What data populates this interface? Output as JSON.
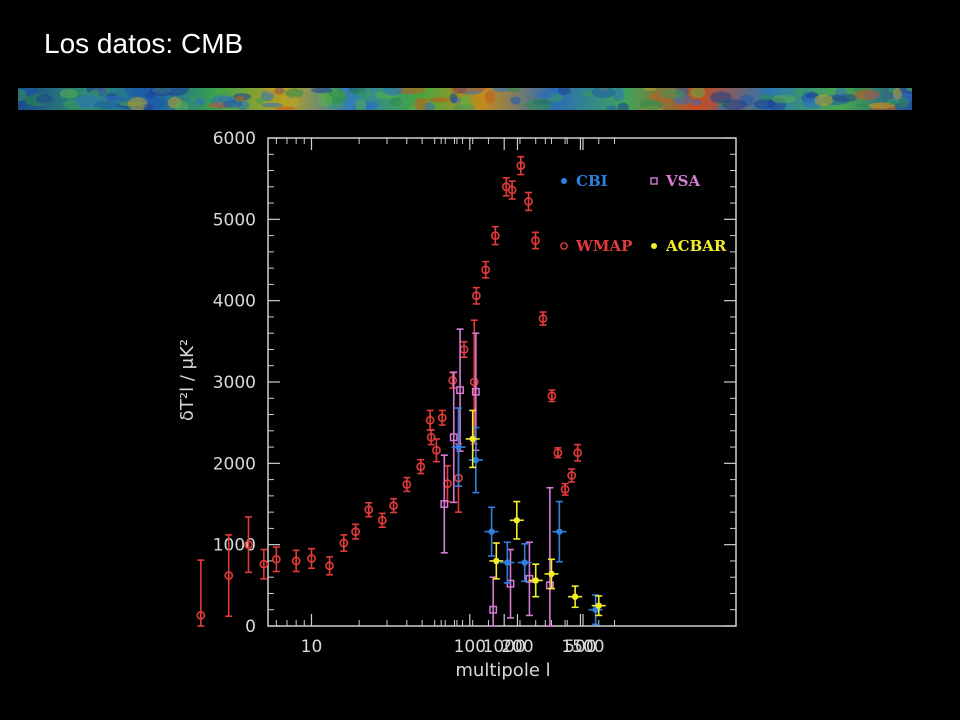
{
  "slide": {
    "title": "Los datos: CMB"
  },
  "strip": {
    "label": "CMB temperature map strip"
  },
  "chart_data": {
    "type": "scatter",
    "title": "",
    "xlabel": "multipole l",
    "ylabel": "δT²l / μK²",
    "x_scale": "mixed log (l < ~500) / linear (l > ~500)",
    "ylim": [
      0,
      6000
    ],
    "x_tick_labels": [
      "10",
      "100",
      "200",
      "500",
      "1000",
      "1500"
    ],
    "x_tick_values": [
      10,
      100,
      200,
      500,
      1000,
      1500
    ],
    "y_tick_labels": [
      "0",
      "1000",
      "2000",
      "3000",
      "4000",
      "5000",
      "6000"
    ],
    "y_tick_values": [
      0,
      1000,
      2000,
      3000,
      4000,
      5000,
      6000
    ],
    "grid": false,
    "legend_position": "top-right",
    "legend": [
      {
        "name": "CBI",
        "color": "#2f7fe0",
        "marker": "dot"
      },
      {
        "name": "VSA",
        "color": "#d77ad6",
        "marker": "open-square"
      },
      {
        "name": "WMAP",
        "color": "#e23b3b",
        "marker": "open-circle"
      },
      {
        "name": "ACBAR",
        "color": "#f2ee2a",
        "marker": "dot"
      }
    ],
    "series": [
      {
        "name": "WMAP",
        "color": "#e23b3b",
        "marker": "open-circle",
        "points": [
          {
            "x": 2,
            "y": 130,
            "err": 680
          },
          {
            "x": 3,
            "y": 620,
            "err": 500
          },
          {
            "x": 4,
            "y": 1000,
            "err": 340
          },
          {
            "x": 5,
            "y": 760,
            "err": 180
          },
          {
            "x": 6,
            "y": 820,
            "err": 150
          },
          {
            "x": 8,
            "y": 800,
            "err": 130
          },
          {
            "x": 10,
            "y": 830,
            "err": 120
          },
          {
            "x": 13,
            "y": 740,
            "err": 110
          },
          {
            "x": 16,
            "y": 1020,
            "err": 100
          },
          {
            "x": 19,
            "y": 1160,
            "err": 90
          },
          {
            "x": 23,
            "y": 1430,
            "err": 85
          },
          {
            "x": 28,
            "y": 1300,
            "err": 85
          },
          {
            "x": 33,
            "y": 1480,
            "err": 85
          },
          {
            "x": 40,
            "y": 1740,
            "err": 85
          },
          {
            "x": 49,
            "y": 1960,
            "err": 85
          },
          {
            "x": 57,
            "y": 2320,
            "err": 90
          },
          {
            "x": 67,
            "y": 2560,
            "err": 90
          },
          {
            "x": 78,
            "y": 3020,
            "err": 95
          },
          {
            "x": 92,
            "y": 3400,
            "err": 95
          },
          {
            "x": 110,
            "y": 4060,
            "err": 100
          },
          {
            "x": 126,
            "y": 4380,
            "err": 100
          },
          {
            "x": 145,
            "y": 4800,
            "err": 110
          },
          {
            "x": 170,
            "y": 5400,
            "err": 110
          },
          {
            "x": 185,
            "y": 5360,
            "err": 110
          },
          {
            "x": 210,
            "y": 5660,
            "err": 110
          },
          {
            "x": 235,
            "y": 5220,
            "err": 110
          },
          {
            "x": 260,
            "y": 4740,
            "err": 100
          },
          {
            "x": 290,
            "y": 3780,
            "err": 80
          },
          {
            "x": 330,
            "y": 2830,
            "err": 70
          },
          {
            "x": 360,
            "y": 2130,
            "err": 60
          },
          {
            "x": 400,
            "y": 1680,
            "err": 70
          },
          {
            "x": 440,
            "y": 1850,
            "err": 80
          },
          {
            "x": 480,
            "y": 2130,
            "err": 100
          },
          {
            "x": 530,
            "y": 2530,
            "err": 120
          },
          {
            "x": 570,
            "y": 2160,
            "err": 140
          },
          {
            "x": 640,
            "y": 1750,
            "err": 220
          },
          {
            "x": 710,
            "y": 1820,
            "err": 420
          },
          {
            "x": 810,
            "y": 3000,
            "err": 760
          }
        ]
      },
      {
        "name": "VSA",
        "color": "#d77ad6",
        "marker": "open-square",
        "points": [
          {
            "x": 620,
            "y": 1500,
            "err": 600
          },
          {
            "x": 680,
            "y": 2320,
            "err": 800
          },
          {
            "x": 720,
            "y": 2900,
            "err": 750
          },
          {
            "x": 820,
            "y": 2880,
            "err": 720
          },
          {
            "x": 930,
            "y": 200,
            "err": 400
          },
          {
            "x": 1040,
            "y": 520,
            "err": 420
          },
          {
            "x": 1160,
            "y": 580,
            "err": 450
          },
          {
            "x": 1290,
            "y": 500,
            "err": 1200
          }
        ]
      },
      {
        "name": "CBI",
        "color": "#2f7fe0",
        "marker": "dot",
        "points": [
          {
            "x": 710,
            "y": 2200,
            "err": 480
          },
          {
            "x": 820,
            "y": 2040,
            "err": 400
          },
          {
            "x": 920,
            "y": 1160,
            "err": 300
          },
          {
            "x": 1020,
            "y": 780,
            "err": 250
          },
          {
            "x": 1130,
            "y": 780,
            "err": 230
          },
          {
            "x": 1350,
            "y": 1160,
            "err": 370
          },
          {
            "x": 1580,
            "y": 200,
            "err": 180
          }
        ]
      },
      {
        "name": "ACBAR",
        "color": "#f2ee2a",
        "marker": "dot",
        "points": [
          {
            "x": 800,
            "y": 2300,
            "err": 350
          },
          {
            "x": 950,
            "y": 800,
            "err": 220
          },
          {
            "x": 1080,
            "y": 1300,
            "err": 230
          },
          {
            "x": 1200,
            "y": 560,
            "err": 200
          },
          {
            "x": 1300,
            "y": 640,
            "err": 180
          },
          {
            "x": 1450,
            "y": 360,
            "err": 130
          },
          {
            "x": 1600,
            "y": 250,
            "err": 120
          }
        ]
      }
    ]
  }
}
